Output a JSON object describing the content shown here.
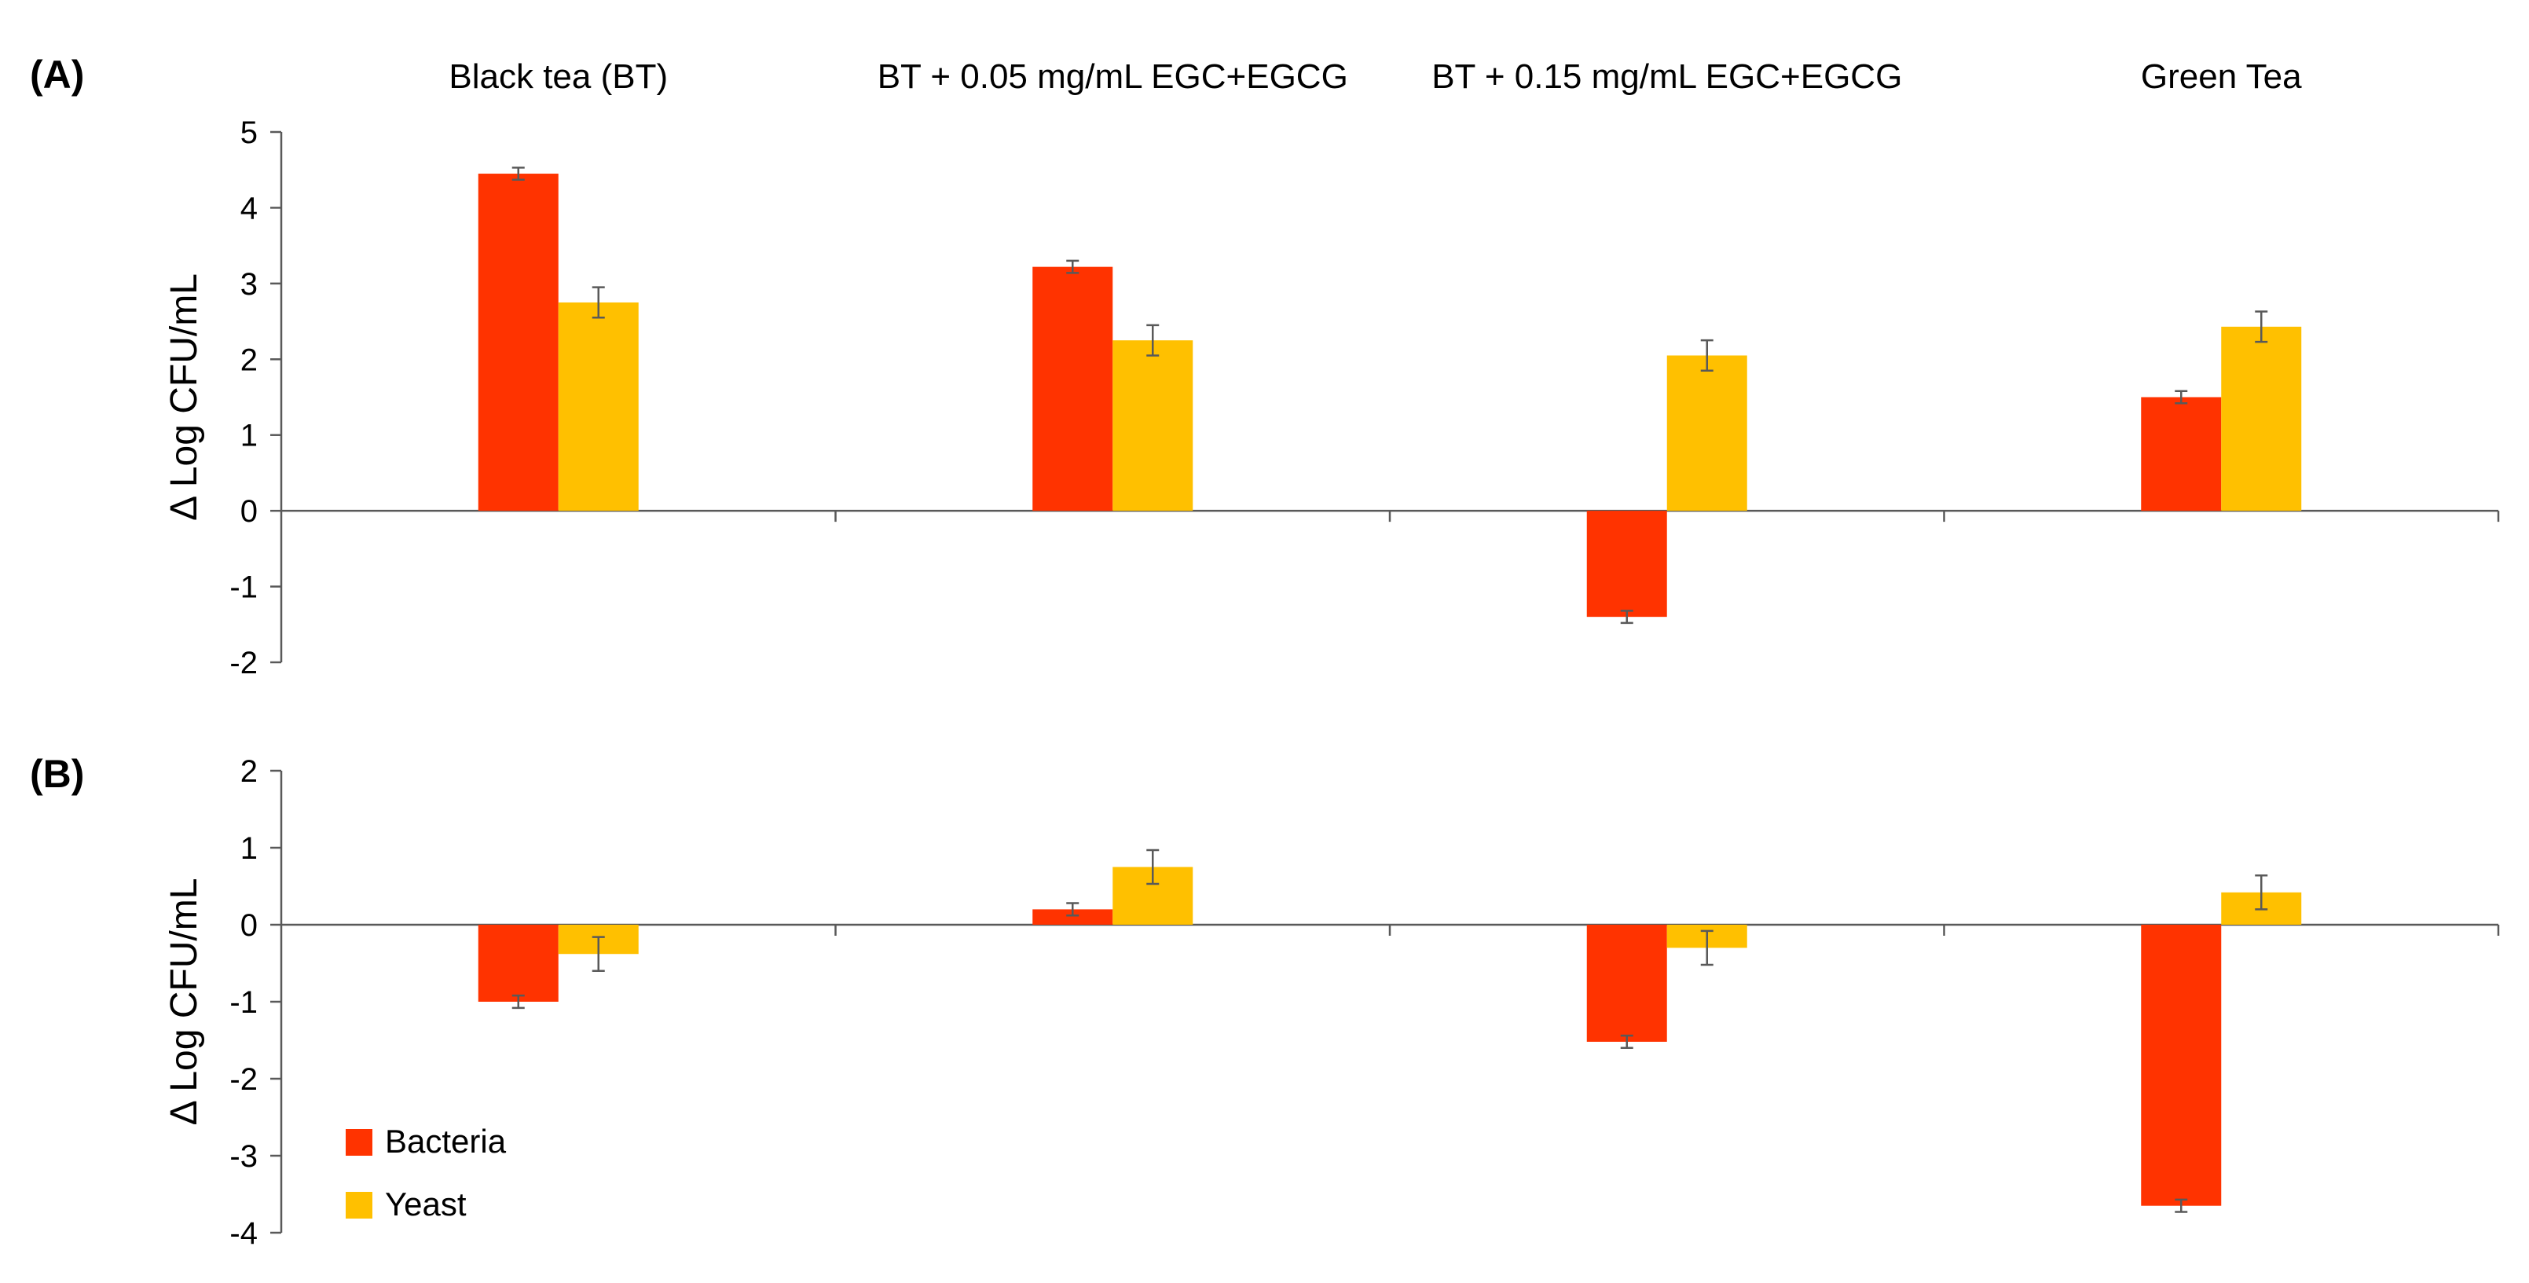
{
  "chart_data": {
    "type": "bar",
    "categories": [
      "Black tea (BT)",
      "BT + 0.05 mg/mL EGC+EGCG",
      "BT + 0.15 mg/mL EGC+EGCG",
      "Green Tea"
    ],
    "legend": [
      {
        "name": "Bacteria",
        "color": "#FF3300"
      },
      {
        "name": "Yeast",
        "color": "#FFC000"
      }
    ],
    "panels": [
      {
        "label": "(A)",
        "ylabel": "Δ Log CFU/mL",
        "ylim": [
          -2,
          5
        ],
        "ticks": [
          "-2",
          "-1",
          "0",
          "1",
          "2",
          "3",
          "4",
          "5"
        ],
        "tick_values": [
          -2,
          -1,
          0,
          1,
          2,
          3,
          4,
          5
        ],
        "series": [
          {
            "name": "Bacteria",
            "values": [
              4.45,
              3.22,
              -1.4,
              1.5
            ],
            "errors": [
              0.08,
              0.08,
              0.08,
              0.08
            ]
          },
          {
            "name": "Yeast",
            "values": [
              2.75,
              2.25,
              2.05,
              2.43
            ],
            "errors": [
              0.2,
              0.2,
              0.2,
              0.2
            ]
          }
        ]
      },
      {
        "label": "(B)",
        "ylabel": "Δ Log CFU/mL",
        "ylim": [
          -4,
          2
        ],
        "ticks": [
          "-4",
          "-3",
          "-2",
          "-1",
          "0",
          "1",
          "2"
        ],
        "tick_values": [
          -4,
          -3,
          -2,
          -1,
          0,
          1,
          2
        ],
        "series": [
          {
            "name": "Bacteria",
            "values": [
              -1.0,
              0.2,
              -1.52,
              -3.65
            ],
            "errors": [
              0.08,
              0.08,
              0.08,
              0.08
            ]
          },
          {
            "name": "Yeast",
            "values": [
              -0.38,
              0.75,
              -0.3,
              0.42
            ],
            "errors": [
              0.22,
              0.22,
              0.22,
              0.22
            ]
          }
        ]
      }
    ]
  }
}
